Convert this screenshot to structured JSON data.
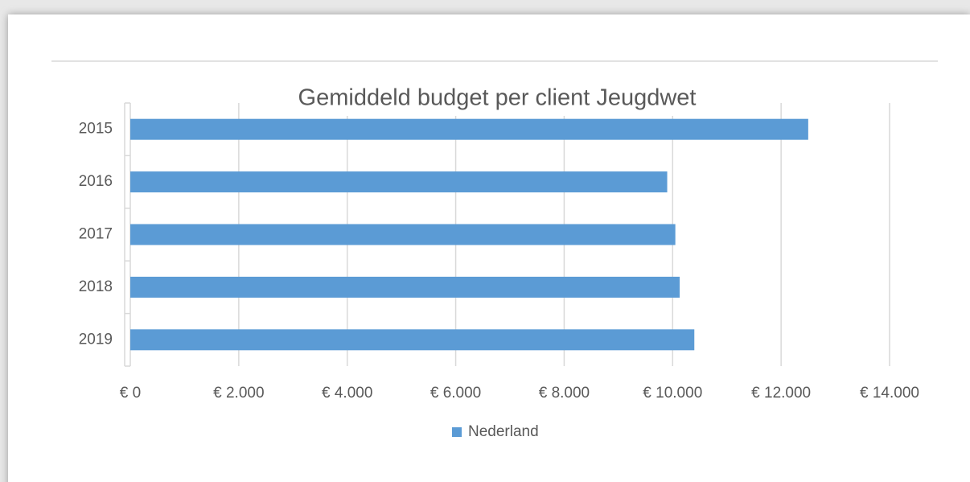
{
  "chart_data": {
    "type": "bar",
    "orientation": "horizontal",
    "title": "Gemiddeld budget per client Jeugdwet",
    "categories": [
      "2015",
      "2016",
      "2017",
      "2018",
      "2019"
    ],
    "series": [
      {
        "name": "Nederland",
        "color": "#5b9bd5",
        "values": [
          12500,
          9900,
          10050,
          10130,
          10400
        ]
      }
    ],
    "xlim": [
      0,
      14000
    ],
    "xticks": [
      {
        "value": 0,
        "label": "€ 0"
      },
      {
        "value": 2000,
        "label": "€ 2.000"
      },
      {
        "value": 4000,
        "label": "€ 4.000"
      },
      {
        "value": 6000,
        "label": "€ 6.000"
      },
      {
        "value": 8000,
        "label": "€ 8.000"
      },
      {
        "value": 10000,
        "label": "€ 10.000"
      },
      {
        "value": 12000,
        "label": "€ 12.000"
      },
      {
        "value": 14000,
        "label": "€ 14.000"
      }
    ],
    "grid": true,
    "legend": "bottom"
  }
}
